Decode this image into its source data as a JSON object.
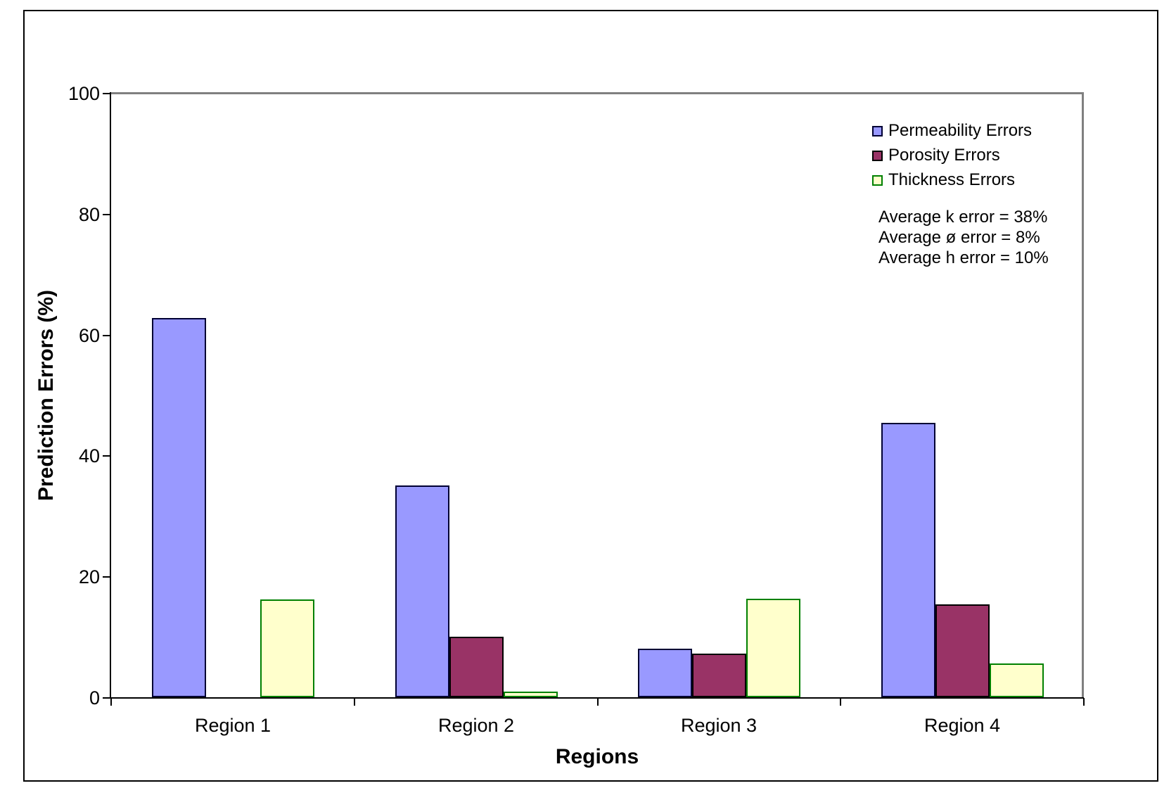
{
  "chart_data": {
    "type": "bar",
    "title": "",
    "xlabel": "Regions",
    "ylabel": "Prediction Errors (%)",
    "categories": [
      "Region 1",
      "Region 2",
      "Region 3",
      "Region 4"
    ],
    "series": [
      {
        "name": "Permeability Errors",
        "fill": "#9999FF",
        "border": "#000033",
        "values": [
          62.8,
          35,
          8,
          45.4
        ]
      },
      {
        "name": "Porosity Errors",
        "fill": "#993366",
        "border": "#000000",
        "values": [
          0,
          10,
          7.2,
          15.4
        ]
      },
      {
        "name": "Thickness Errors",
        "fill": "#FFFFCC",
        "border": "#008000",
        "values": [
          16.2,
          0.9,
          16.3,
          5.6
        ]
      }
    ],
    "ylim": [
      0,
      100
    ],
    "yticks": [
      0,
      20,
      40,
      60,
      80,
      100
    ],
    "grid": false,
    "legend_position": "upper-right-inside"
  },
  "annotations": {
    "line1": "Average k error = 38%",
    "line2": "Average ø error = 8%",
    "line3": "Average h error = 10%"
  },
  "colors": {
    "plot_frame_gray": "#808080",
    "axis_black": "#000000",
    "background": "#ffffff"
  }
}
